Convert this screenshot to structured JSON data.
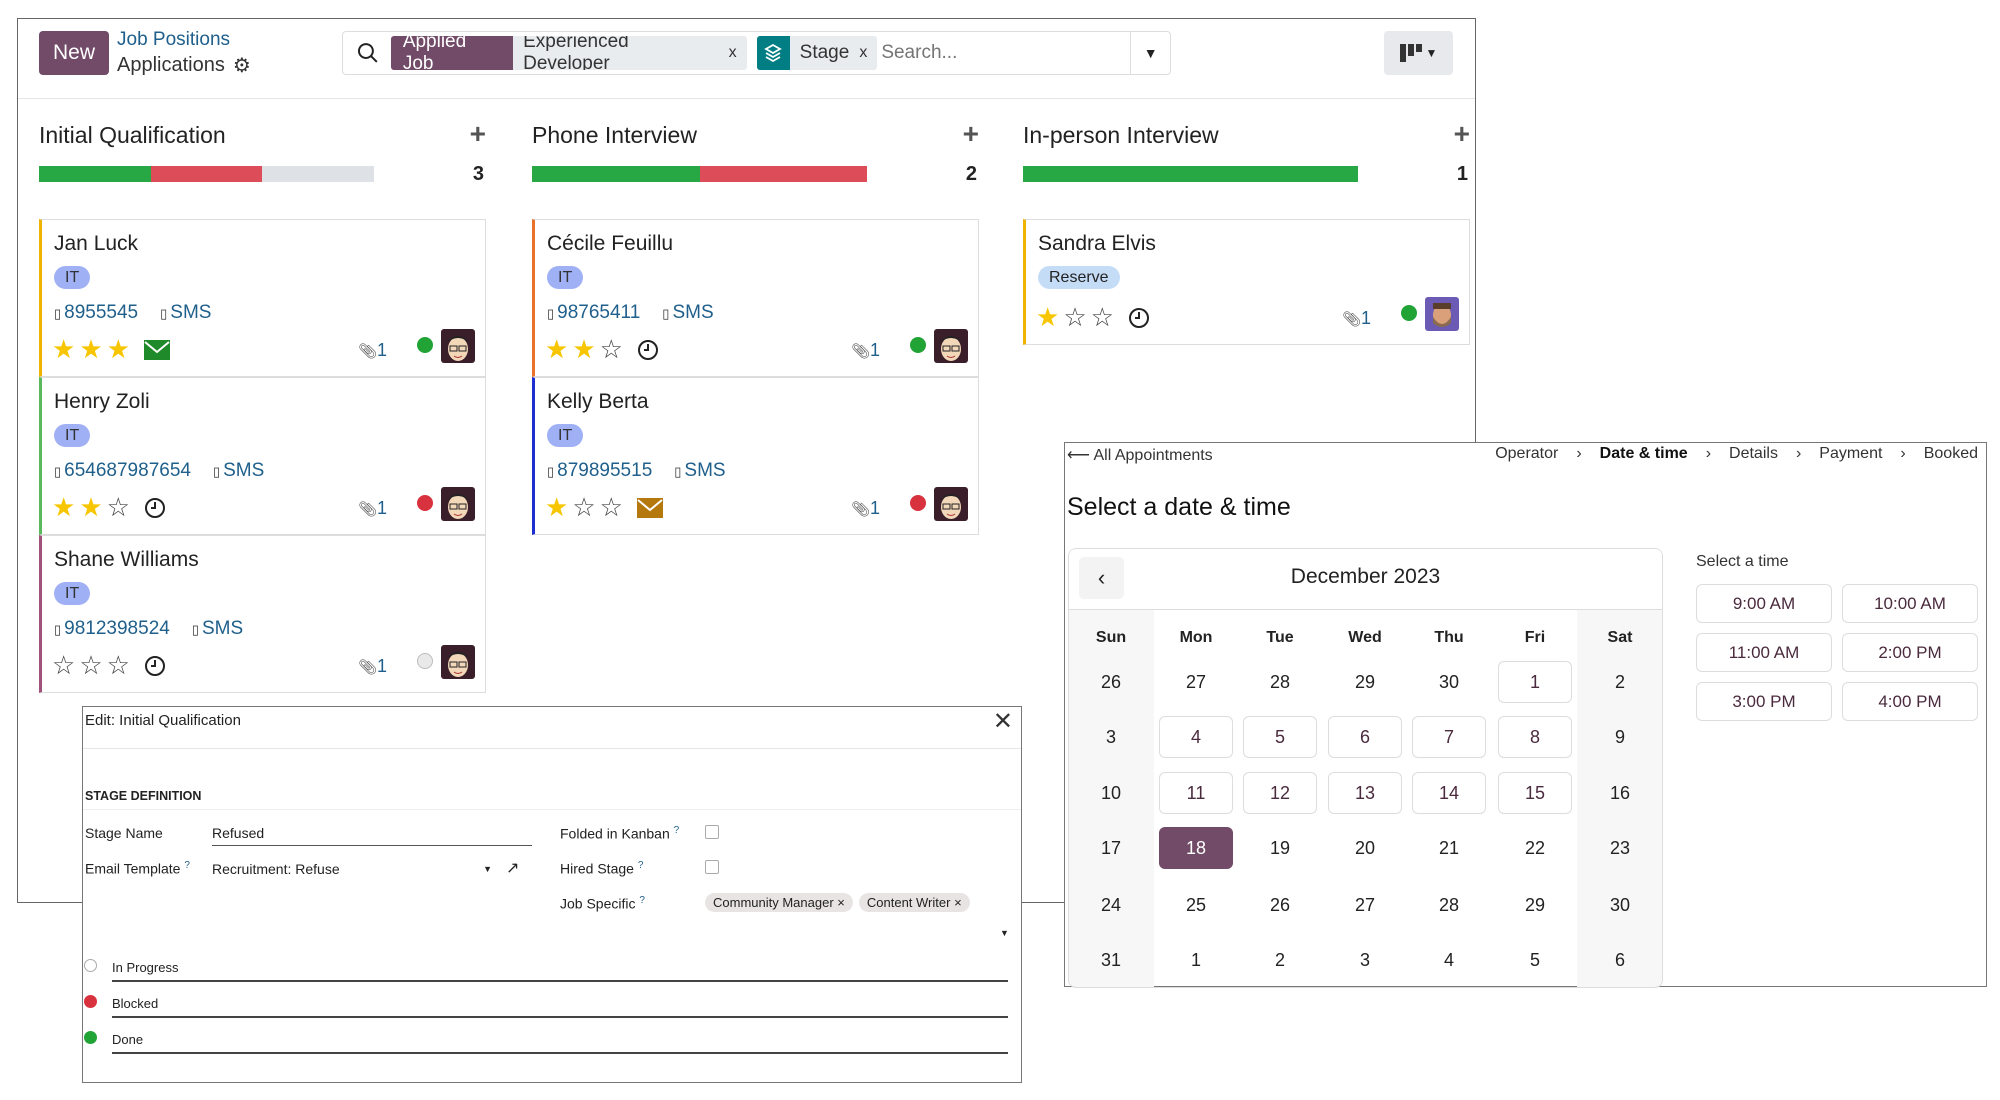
{
  "kanban": {
    "new_label": "New",
    "breadcrumb_parent": "Job Positions",
    "breadcrumb_current": "Applications",
    "search": {
      "facets": [
        {
          "key": "Applied Job",
          "value": "Experienced Developer"
        },
        {
          "key_icon": "layers-icon",
          "value": "Stage"
        }
      ],
      "placeholder": "Search..."
    },
    "colors": {
      "green": "#28a745",
      "red": "#dc4c59",
      "grey": "#dee2e6",
      "brand": "#714b67"
    },
    "columns": [
      {
        "title": "Initial Qualification",
        "count": "3",
        "progress": {
          "green": 1,
          "red": 1,
          "grey": 1
        },
        "cards": [
          {
            "name": "Jan Luck",
            "tag": "IT",
            "phone": "8955545",
            "sms": "SMS",
            "stars": 3,
            "activity": "envelope-green",
            "attachments": "1",
            "status": "green",
            "border": "#f0b400"
          },
          {
            "name": "Henry Zoli",
            "tag": "IT",
            "phone": "654687987654",
            "sms": "SMS",
            "stars": 2,
            "activity": "clock",
            "attachments": "1",
            "status": "red",
            "border": "#5cb85c"
          },
          {
            "name": "Shane Williams",
            "tag": "IT",
            "phone": "9812398524",
            "sms": "SMS",
            "stars": 0,
            "activity": "clock",
            "attachments": "1",
            "status": "grey",
            "border": "#a0527d"
          }
        ]
      },
      {
        "title": "Phone Interview",
        "count": "2",
        "progress": {
          "green": 1,
          "red": 1,
          "grey": 0
        },
        "cards": [
          {
            "name": "Cécile Feuillu",
            "tag": "IT",
            "phone": "98765411",
            "sms": "SMS",
            "stars": 2,
            "activity": "clock",
            "attachments": "1",
            "status": "green",
            "border": "#e8712c"
          },
          {
            "name": "Kelly Berta",
            "tag": "IT",
            "phone": "879895515",
            "sms": "SMS",
            "stars": 1,
            "activity": "envelope-orange",
            "attachments": "1",
            "status": "red",
            "border": "#1d2fd0"
          }
        ]
      },
      {
        "title": "In-person Interview",
        "count": "1",
        "progress": {
          "green": 1,
          "red": 0,
          "grey": 0
        },
        "cards": [
          {
            "name": "Sandra Elvis",
            "tag": "Reserve",
            "stars": 1,
            "activity": "clock",
            "attachments": "1",
            "status": "green",
            "border": "#f0b400"
          }
        ]
      }
    ]
  },
  "dialog": {
    "title": "Edit: Initial Qualification",
    "section": "STAGE DEFINITION",
    "stage_name_label": "Stage Name",
    "stage_name_value": "Refused",
    "email_template_label": "Email Template",
    "email_template_value": "Recruitment: Refuse",
    "folded_label": "Folded in Kanban",
    "folded_checked": false,
    "hired_label": "Hired Stage",
    "hired_checked": false,
    "job_specific_label": "Job Specific",
    "job_specific_tags": [
      "Community Manager",
      "Content Writer"
    ],
    "help_mark": "?",
    "kanban_states": [
      {
        "label": "In Progress",
        "color": "#e0e0e0"
      },
      {
        "label": "Blocked",
        "color": "#d9323f"
      },
      {
        "label": "Done",
        "color": "#21a336"
      }
    ]
  },
  "appointment": {
    "back_label": "All Appointments",
    "steps": [
      "Operator",
      "Date & time",
      "Details",
      "Payment",
      "Booked"
    ],
    "active_step": "Date & time",
    "title": "Select a date & time",
    "month": "December 2023",
    "weekdays": [
      "Sun",
      "Mon",
      "Tue",
      "Wed",
      "Thu",
      "Fri",
      "Sat"
    ],
    "weeks": [
      [
        "26",
        "27",
        "28",
        "29",
        "30",
        "1",
        "2"
      ],
      [
        "3",
        "4",
        "5",
        "6",
        "7",
        "8",
        "9"
      ],
      [
        "10",
        "11",
        "12",
        "13",
        "14",
        "15",
        "16"
      ],
      [
        "17",
        "18",
        "19",
        "20",
        "21",
        "22",
        "23"
      ],
      [
        "24",
        "25",
        "26",
        "27",
        "28",
        "29",
        "30"
      ],
      [
        "31",
        "1",
        "2",
        "3",
        "4",
        "5",
        "6"
      ]
    ],
    "available_days": [
      "1",
      "4",
      "5",
      "6",
      "7",
      "8",
      "11",
      "12",
      "13",
      "14",
      "15"
    ],
    "selected_day": "18",
    "time_label": "Select a time",
    "times": [
      "9:00 AM",
      "10:00 AM",
      "11:00 AM",
      "2:00 PM",
      "3:00 PM",
      "4:00 PM"
    ]
  }
}
